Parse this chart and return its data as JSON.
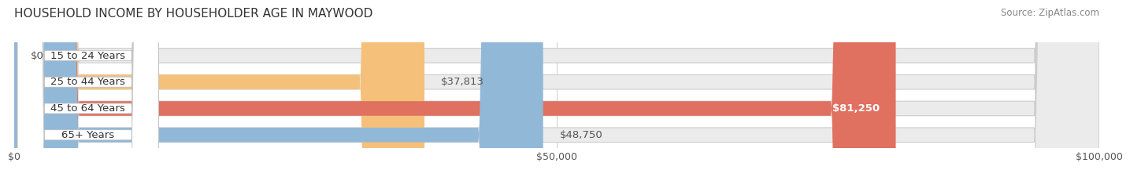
{
  "title": "HOUSEHOLD INCOME BY HOUSEHOLDER AGE IN MAYWOOD",
  "source": "Source: ZipAtlas.com",
  "categories": [
    "15 to 24 Years",
    "25 to 44 Years",
    "45 to 64 Years",
    "65+ Years"
  ],
  "values": [
    0,
    37813,
    81250,
    48750
  ],
  "bar_colors": [
    "#f08080",
    "#f5c07a",
    "#e07060",
    "#92b8d8"
  ],
  "bar_bg_color": "#ebebeb",
  "label_colors": [
    "#555555",
    "#555555",
    "#ffffff",
    "#555555"
  ],
  "xlim": [
    0,
    100000
  ],
  "xticks": [
    0,
    50000,
    100000
  ],
  "xtick_labels": [
    "$0",
    "$50,000",
    "$100,000"
  ],
  "fig_bg_color": "#ffffff",
  "bar_height": 0.55,
  "title_fontsize": 11,
  "label_fontsize": 9.5,
  "tick_fontsize": 9,
  "source_fontsize": 8.5
}
